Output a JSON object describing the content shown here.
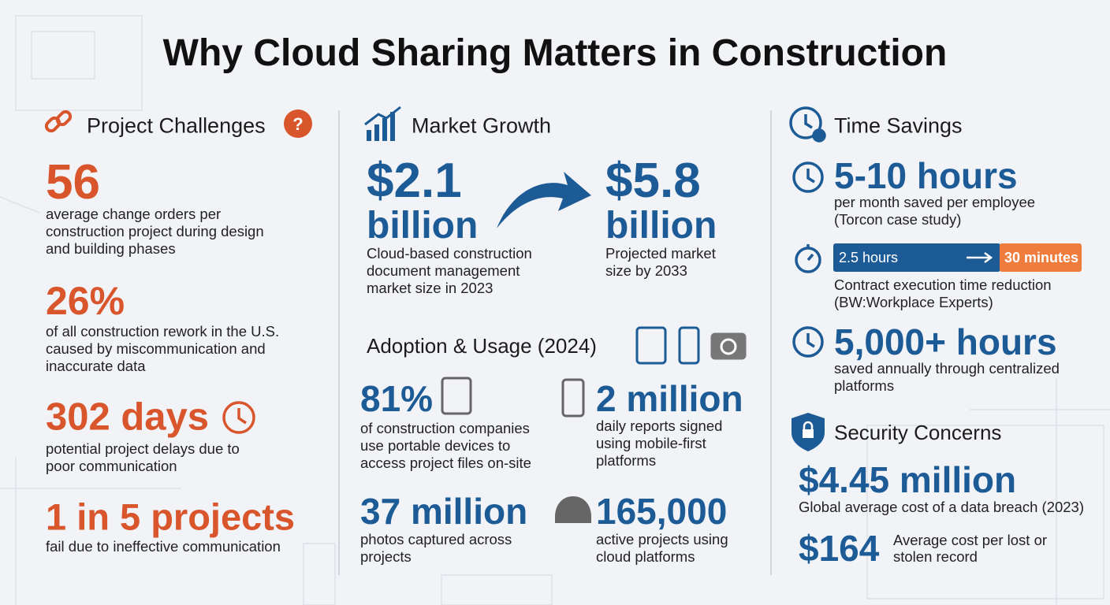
{
  "title": "Why Cloud Sharing Matters in Construction",
  "challenges": {
    "heading": "Project Challenges",
    "stats": [
      {
        "value": "56",
        "lines": [
          "average change orders per",
          "construction project during design",
          "and building phases"
        ]
      },
      {
        "value": "26%",
        "lines": [
          "of all construction rework in the U.S.",
          "caused by miscommunication and",
          "inaccurate data"
        ]
      },
      {
        "value": "302 days",
        "lines": [
          "potential project delays due to",
          "poor communication"
        ]
      },
      {
        "value": "1 in 5 projects",
        "lines": [
          "fail due to ineffective communication"
        ]
      }
    ]
  },
  "market": {
    "heading": "Market Growth",
    "from": {
      "value": "$2.1",
      "unit": "billion",
      "lines": [
        "Cloud-based construction",
        "document management",
        "market size in 2023"
      ]
    },
    "to": {
      "value": "$5.8",
      "unit": "billion",
      "lines": [
        "Projected market",
        "size by 2033"
      ]
    }
  },
  "adoption": {
    "heading": "Adoption & Usage (2024)",
    "stats": [
      {
        "value": "81%",
        "lines": [
          "of construction companies",
          "use portable devices to",
          "access project files on-site"
        ]
      },
      {
        "value": "2 million",
        "lines": [
          "daily reports signed",
          "using mobile-first",
          "platforms"
        ]
      },
      {
        "value": "37 million",
        "lines": [
          "photos captured across",
          "projects"
        ]
      },
      {
        "value": "165,000",
        "lines": [
          "active projects using",
          "cloud platforms"
        ]
      }
    ]
  },
  "time": {
    "heading": "Time Savings",
    "stats": [
      {
        "value": "5-10 hours",
        "lines": [
          "per month saved per employee",
          "(Torcon case study)"
        ]
      },
      {
        "from": "2.5 hours",
        "to": "30 minutes",
        "lines": [
          "Contract execution time reduction",
          "(BW:Workplace Experts)"
        ]
      },
      {
        "value": "5,000+ hours",
        "lines": [
          "saved annually through centralized",
          "platforms"
        ]
      }
    ]
  },
  "security": {
    "heading": "Security Concerns",
    "stats": [
      {
        "value": "$4.45 million",
        "lines": [
          "Global average cost of a data breach (2023)"
        ]
      },
      {
        "value": "$164",
        "lines": [
          "Average cost per lost or",
          "stolen record"
        ]
      }
    ]
  }
}
